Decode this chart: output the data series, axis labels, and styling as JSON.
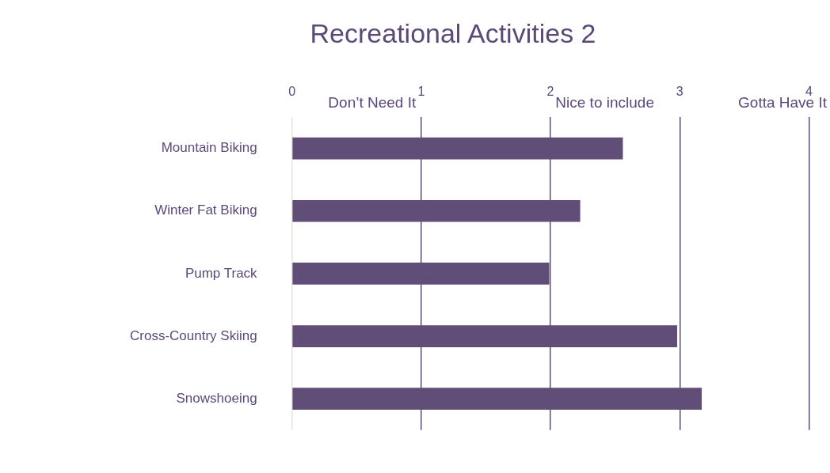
{
  "chart_data": {
    "type": "bar",
    "orientation": "horizontal",
    "title": "Recreational Activities 2",
    "categories": [
      "Mountain Biking",
      "Winter Fat Biking",
      "Pump Track",
      "Cross-Country Skiing",
      "Snowshoeing"
    ],
    "values": [
      2.56,
      2.23,
      1.99,
      2.98,
      3.17
    ],
    "color": "#604e78",
    "xlim": [
      0,
      4
    ],
    "xticks": [
      0,
      1,
      2,
      3,
      4
    ],
    "grid": "x",
    "legend": false,
    "annotations": [
      "Don’t Need It",
      "Nice to include",
      "Gotta Have It"
    ]
  }
}
